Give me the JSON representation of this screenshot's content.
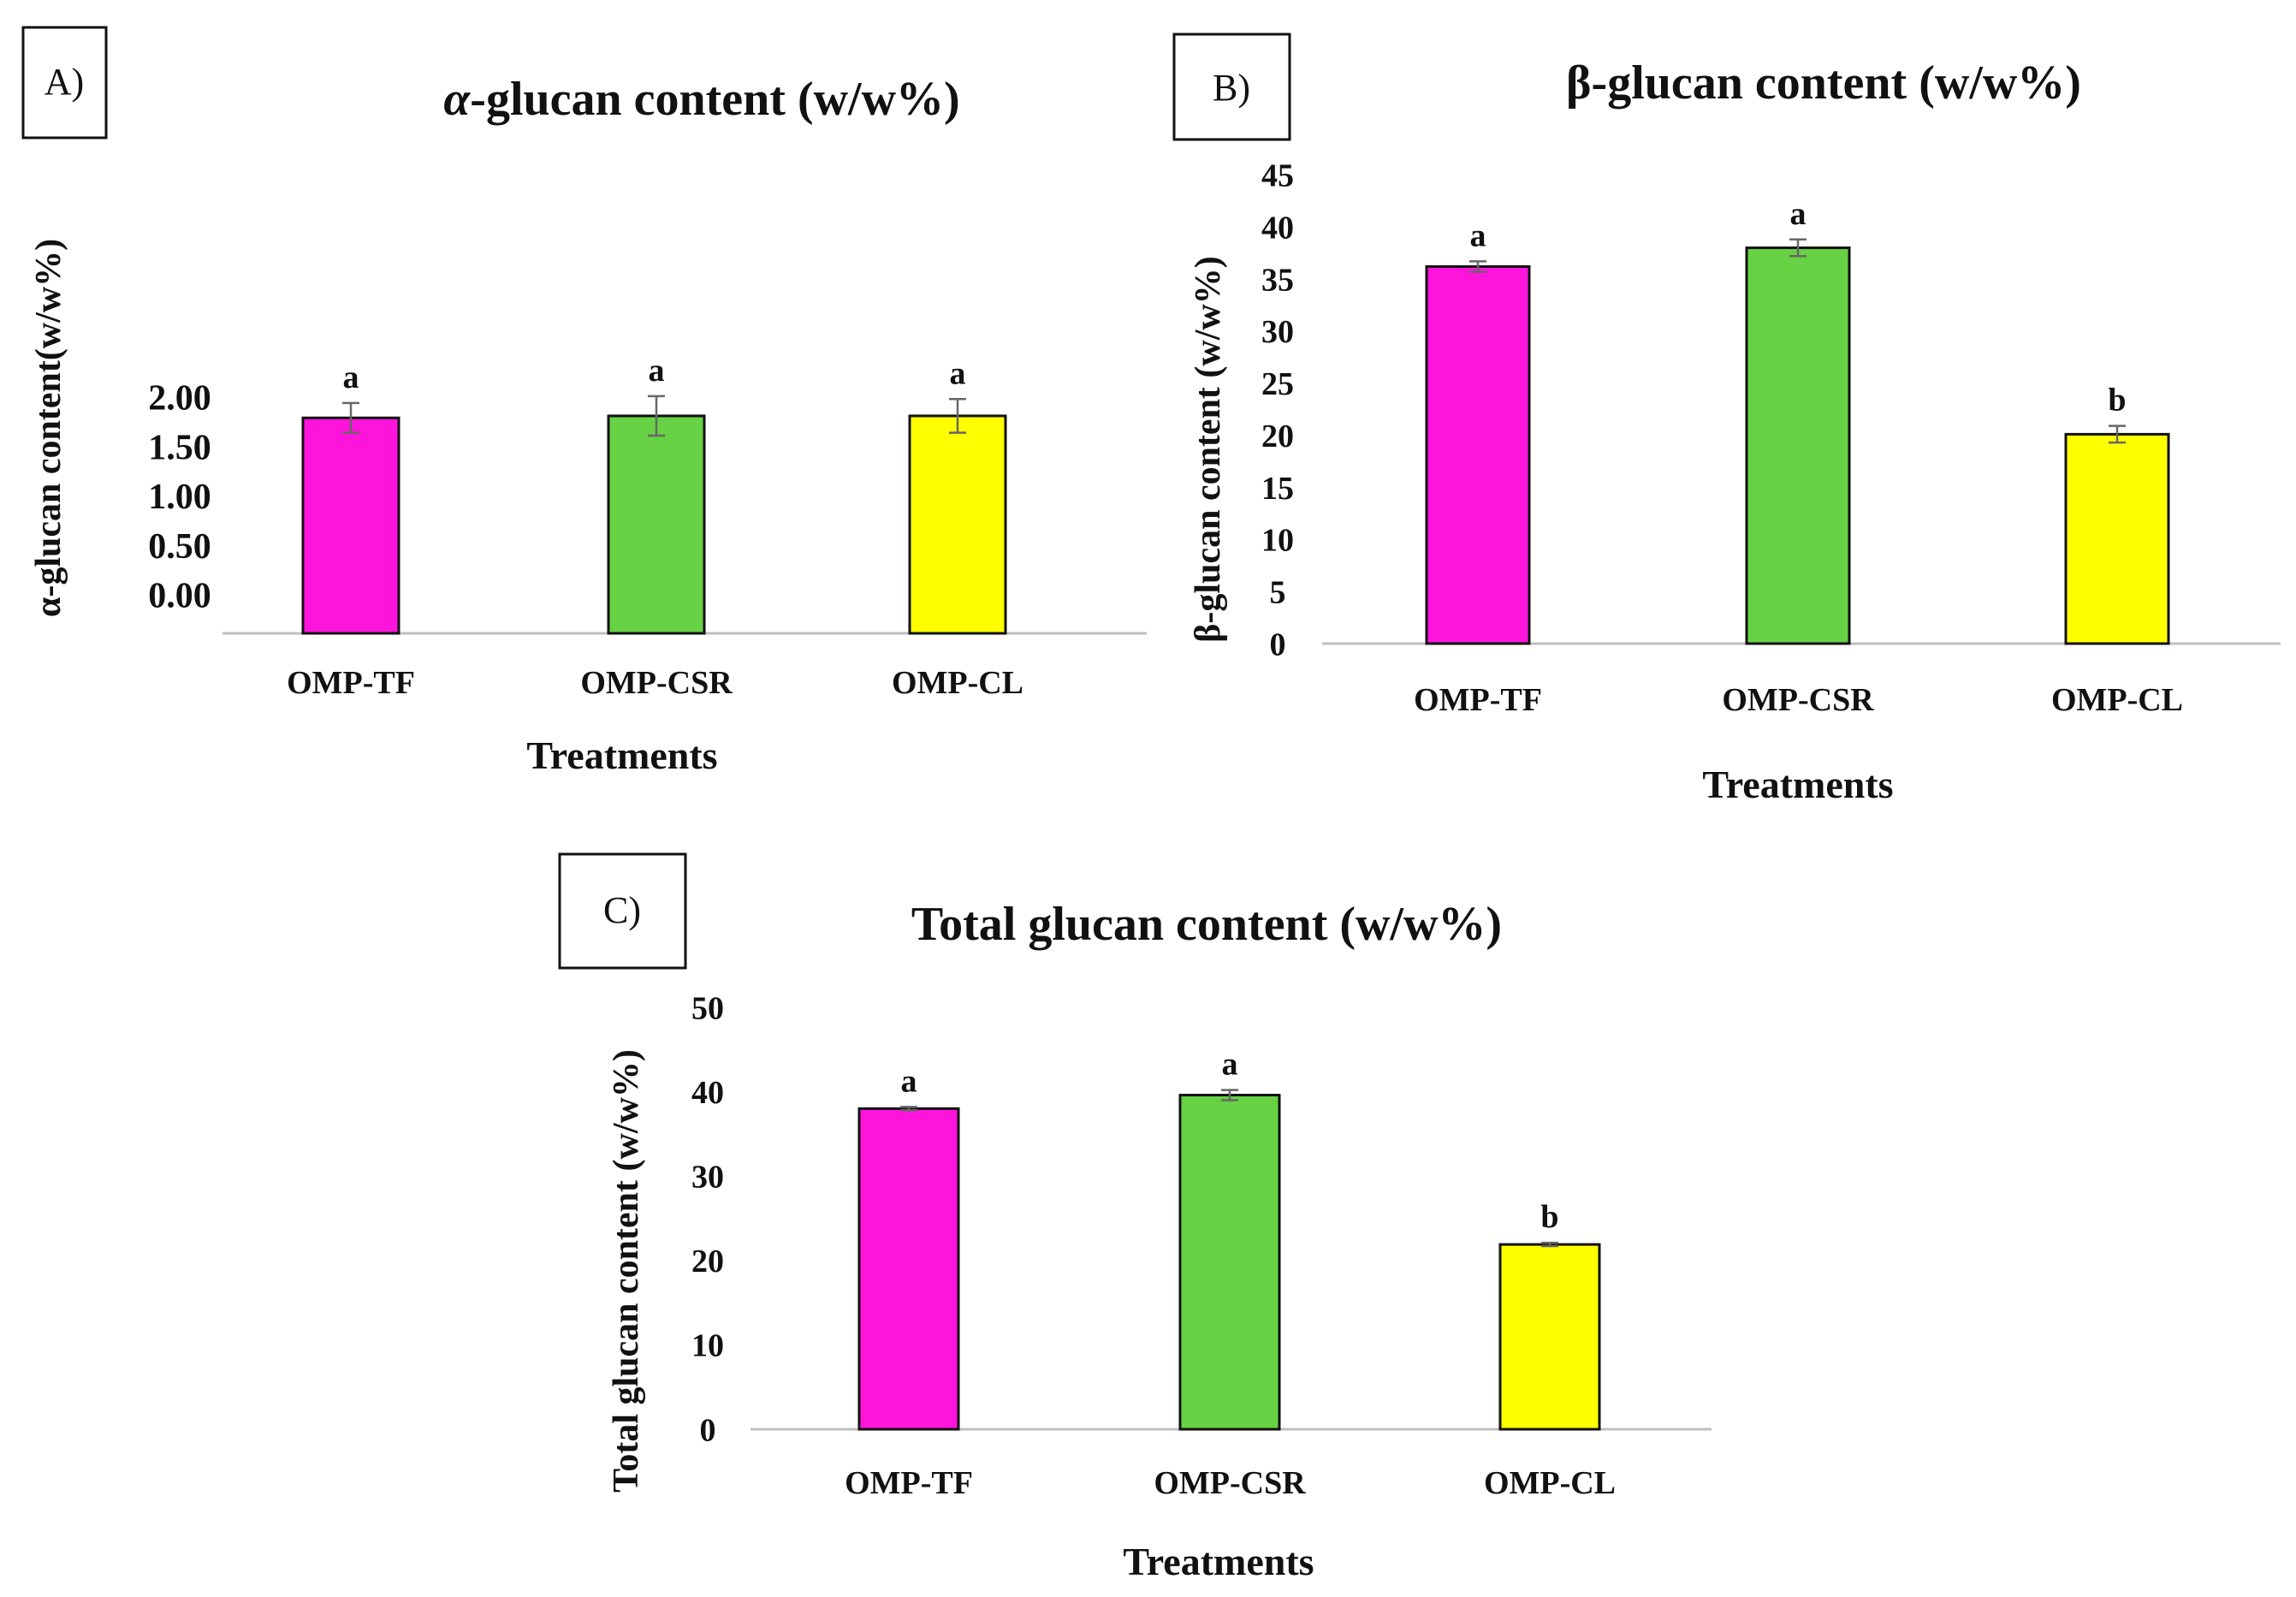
{
  "figure": {
    "panels": [
      {
        "label": "A)"
      },
      {
        "label": "B)"
      },
      {
        "label": "C)"
      }
    ]
  },
  "chart_data": [
    {
      "type": "bar",
      "title": "α-glucan content (w/w%)",
      "title_prefix": "α",
      "title_rest": "-glucan content (w/w%)",
      "xlabel": "Treatments",
      "ylabel": "α-glucan content(w/w%)",
      "categories": [
        "OMP-TF",
        "OMP-CSR",
        "OMP-CL"
      ],
      "values": [
        1.79,
        1.81,
        1.81
      ],
      "errors": [
        0.15,
        0.2,
        0.17
      ],
      "letters": [
        "a",
        "a",
        "a"
      ],
      "colors": [
        "#ff14dc",
        "#66d244",
        "#ffff00"
      ],
      "ylim": [
        -0.35,
        2.1
      ],
      "yticks": [
        0,
        0.5,
        1,
        1.5,
        2
      ],
      "ytick_labels": [
        "0.00",
        "0.50",
        "1.00",
        "1.50",
        "2.00"
      ],
      "grid": false
    },
    {
      "type": "bar",
      "title": "β-glucan content (w/w%)",
      "xlabel": "Treatments",
      "ylabel": "β-glucan content (w/w%)",
      "categories": [
        "OMP-TF",
        "OMP-CSR",
        "OMP-CL"
      ],
      "values": [
        36.2,
        38.0,
        20.1
      ],
      "errors": [
        0.5,
        0.8,
        0.8
      ],
      "letters": [
        "a",
        "a",
        "b"
      ],
      "colors": [
        "#ff14dc",
        "#66d244",
        "#ffff00"
      ],
      "ylim": [
        0,
        45
      ],
      "yticks": [
        0,
        5,
        10,
        15,
        20,
        25,
        30,
        35,
        40,
        45
      ],
      "ytick_labels": [
        "0",
        "5",
        "10",
        "15",
        "20",
        "25",
        "30",
        "35",
        "40",
        "45"
      ],
      "grid": false
    },
    {
      "type": "bar",
      "title": "Total glucan content (w/w%)",
      "xlabel": "Treatments",
      "ylabel": "Total glucan content (w/w%)",
      "categories": [
        "OMP-TF",
        "OMP-CSR",
        "OMP-CL"
      ],
      "values": [
        38.0,
        39.6,
        21.9
      ],
      "errors": [
        0.2,
        0.6,
        0.2
      ],
      "letters": [
        "a",
        "a",
        "b"
      ],
      "colors": [
        "#ff14dc",
        "#66d244",
        "#ffff00"
      ],
      "ylim": [
        0,
        50
      ],
      "yticks": [
        0,
        10,
        20,
        30,
        40,
        50
      ],
      "ytick_labels": [
        "0",
        "10",
        "20",
        "30",
        "40",
        "50"
      ],
      "grid": false
    }
  ]
}
